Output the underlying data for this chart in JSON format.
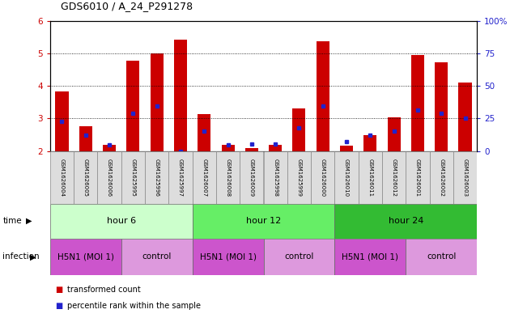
{
  "title": "GDS6010 / A_24_P291278",
  "samples": [
    "GSM1626004",
    "GSM1626005",
    "GSM1626006",
    "GSM1625995",
    "GSM1625996",
    "GSM1625997",
    "GSM1626007",
    "GSM1626008",
    "GSM1626009",
    "GSM1625998",
    "GSM1625999",
    "GSM1626000",
    "GSM1626010",
    "GSM1626011",
    "GSM1626012",
    "GSM1626001",
    "GSM1626002",
    "GSM1626003"
  ],
  "red_values": [
    3.83,
    2.75,
    2.18,
    4.78,
    5.0,
    5.42,
    3.13,
    2.18,
    2.1,
    2.18,
    3.3,
    5.37,
    2.16,
    2.48,
    3.03,
    4.95,
    4.73,
    4.1
  ],
  "blue_values": [
    2.9,
    2.5,
    2.18,
    3.15,
    3.37,
    2.0,
    2.62,
    2.2,
    2.22,
    2.22,
    2.72,
    3.37,
    2.28,
    2.48,
    2.62,
    3.27,
    3.15,
    3.0
  ],
  "ymin": 2.0,
  "ymax": 6.0,
  "yticks_left": [
    2,
    3,
    4,
    5,
    6
  ],
  "yticks_right": [
    0,
    25,
    50,
    75,
    100
  ],
  "bar_color": "#cc0000",
  "dot_color": "#2222cc",
  "time_groups": [
    {
      "label": "hour 6",
      "start": 0,
      "end": 6,
      "color": "#ccffcc"
    },
    {
      "label": "hour 12",
      "start": 6,
      "end": 12,
      "color": "#66ee66"
    },
    {
      "label": "hour 24",
      "start": 12,
      "end": 18,
      "color": "#33bb33"
    }
  ],
  "infection_groups": [
    {
      "label": "H5N1 (MOI 1)",
      "start": 0,
      "end": 3,
      "color": "#cc55cc"
    },
    {
      "label": "control",
      "start": 3,
      "end": 6,
      "color": "#dd99dd"
    },
    {
      "label": "H5N1 (MOI 1)",
      "start": 6,
      "end": 9,
      "color": "#cc55cc"
    },
    {
      "label": "control",
      "start": 9,
      "end": 12,
      "color": "#dd99dd"
    },
    {
      "label": "H5N1 (MOI 1)",
      "start": 12,
      "end": 15,
      "color": "#cc55cc"
    },
    {
      "label": "control",
      "start": 15,
      "end": 18,
      "color": "#dd99dd"
    }
  ],
  "legend_red": "transformed count",
  "legend_blue": "percentile rank within the sample",
  "bar_color_label": "#cc0000",
  "dot_color_label": "#2222cc",
  "sample_box_color": "#dddddd",
  "fig_width": 6.51,
  "fig_height": 3.93,
  "dpi": 100
}
